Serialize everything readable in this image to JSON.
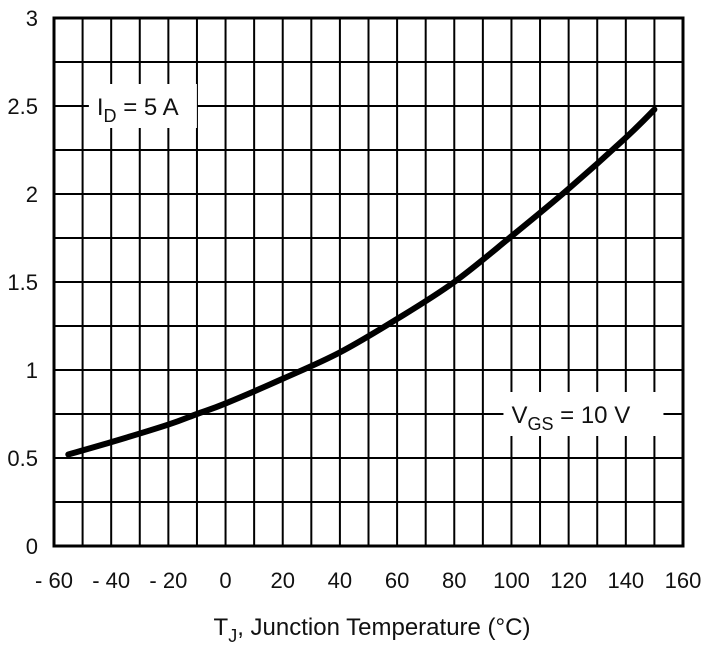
{
  "chart_data": {
    "type": "line",
    "title": "",
    "xlabel": "T",
    "xlabel_sub": "J",
    "xlabel_rest": ", Junction Temperature (°C)",
    "ylabel": "",
    "xlim": [
      -60,
      160
    ],
    "ylim": [
      0,
      3
    ],
    "x_ticks": [
      "- 60",
      "- 40",
      "- 20",
      "0",
      "20",
      "40",
      "60",
      "80",
      "100",
      "120",
      "140",
      "160"
    ],
    "x_tick_values": [
      -60,
      -40,
      -20,
      0,
      20,
      40,
      60,
      80,
      100,
      120,
      140,
      160
    ],
    "y_ticks": [
      "0",
      "0.5",
      "1",
      "1.5",
      "2",
      "2.5",
      "3"
    ],
    "y_tick_values": [
      0,
      0.5,
      1,
      1.5,
      2,
      2.5,
      3
    ],
    "grid": true,
    "grid_x_step": 10,
    "grid_y_step": 0.25,
    "series": [
      {
        "x": [
          -55,
          -40,
          -20,
          -10,
          0,
          20,
          40,
          60,
          80,
          100,
          120,
          140,
          150
        ],
        "y": [
          0.52,
          0.59,
          0.69,
          0.75,
          0.81,
          0.95,
          1.1,
          1.29,
          1.5,
          1.76,
          2.03,
          2.32,
          2.48
        ],
        "color": "#000000"
      }
    ],
    "annotations": [
      {
        "main": "I",
        "sub": "D",
        "rest": " = 5 A",
        "x": -45,
        "y": 2.5
      },
      {
        "main": "V",
        "sub": "GS",
        "rest": " = 10 V",
        "x": 100,
        "y": 0.75
      }
    ]
  }
}
